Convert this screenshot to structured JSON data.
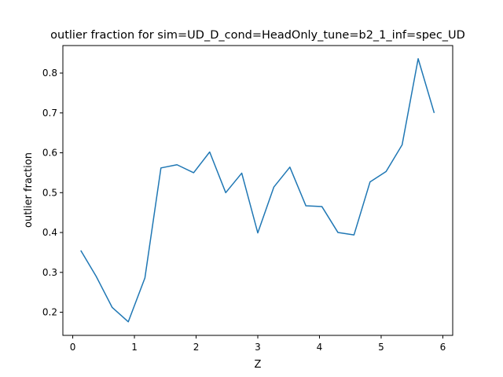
{
  "chart_data": {
    "type": "line",
    "title": "outlier fraction for sim=UD_D_cond=HeadOnly_tune=b2_1_inf=spec_UD",
    "xlabel": "Z",
    "ylabel": "outlier fraction",
    "xlim": [
      -0.16,
      6.16
    ],
    "ylim": [
      0.142,
      0.869
    ],
    "xticks": [
      0,
      1,
      2,
      3,
      4,
      5,
      6
    ],
    "xtick_labels": [
      "0",
      "1",
      "2",
      "3",
      "4",
      "5",
      "6"
    ],
    "yticks": [
      0.2,
      0.3,
      0.4,
      0.5,
      0.6,
      0.7,
      0.8
    ],
    "ytick_labels": [
      "0.2",
      "0.3",
      "0.4",
      "0.5",
      "0.6",
      "0.7",
      "0.8"
    ],
    "grid": false,
    "series": [
      {
        "color": "#1f77b4",
        "x": [
          0.13,
          0.38,
          0.64,
          0.9,
          1.17,
          1.43,
          1.69,
          1.96,
          2.22,
          2.48,
          2.74,
          3.0,
          3.26,
          3.52,
          3.78,
          4.04,
          4.3,
          4.56,
          4.82,
          5.08,
          5.34,
          5.6,
          5.86
        ],
        "y": [
          0.355,
          0.29,
          0.212,
          0.176,
          0.286,
          0.562,
          0.57,
          0.55,
          0.602,
          0.5,
          0.549,
          0.399,
          0.514,
          0.564,
          0.467,
          0.465,
          0.4,
          0.394,
          0.527,
          0.553,
          0.62,
          0.836,
          0.7
        ]
      }
    ]
  }
}
